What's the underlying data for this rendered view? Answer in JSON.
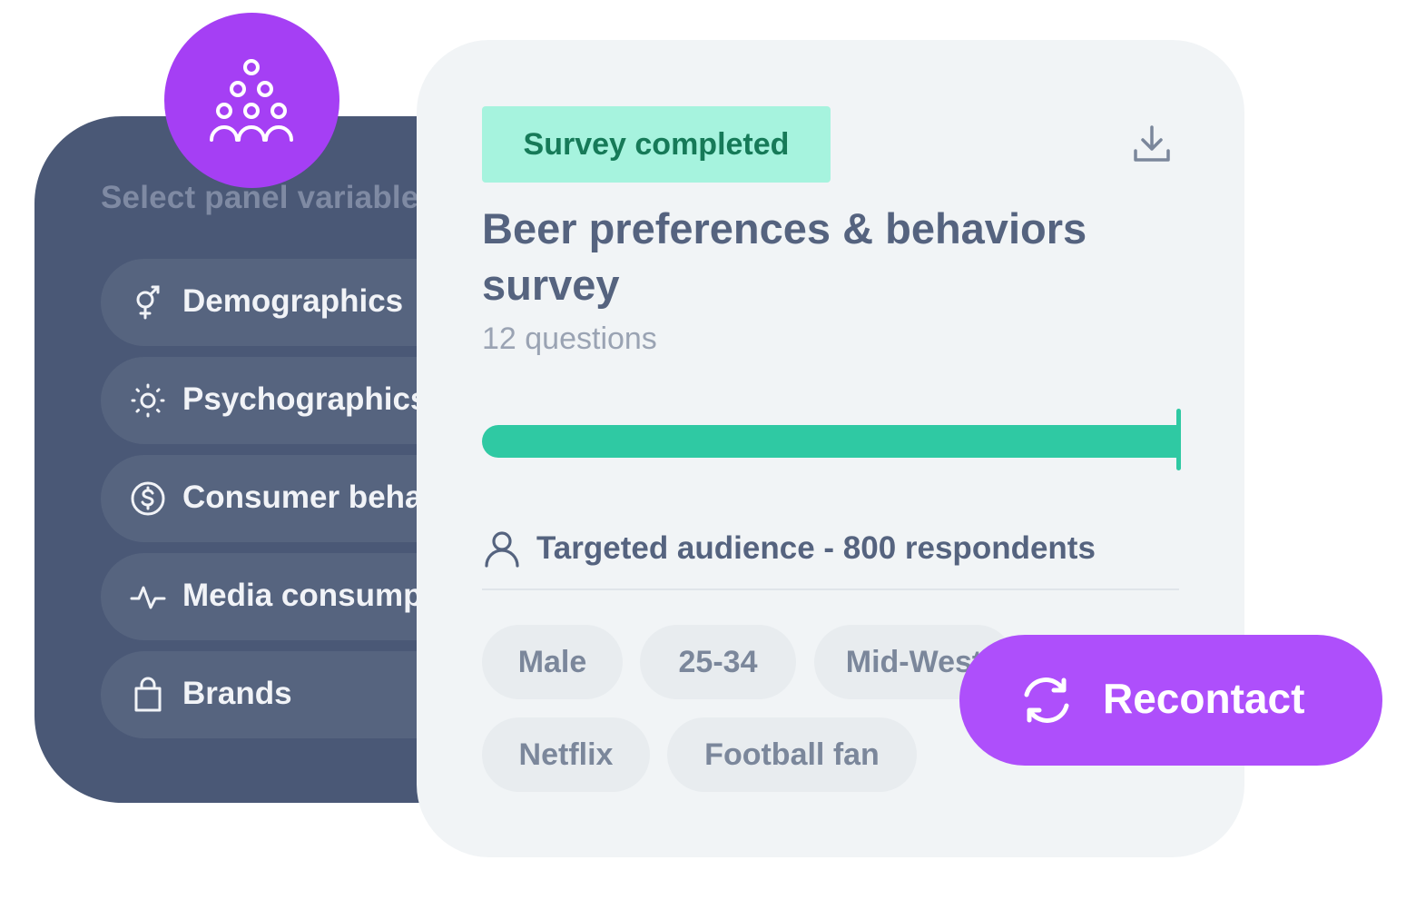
{
  "panel": {
    "title": "Select panel variables",
    "items": [
      {
        "label": "Demographics",
        "icon": "gender-icon"
      },
      {
        "label": "Psychographics",
        "icon": "sun-icon"
      },
      {
        "label": "Consumer behavior",
        "icon": "dollar-icon"
      },
      {
        "label": "Media  consumption",
        "icon": "activity-icon"
      },
      {
        "label": "Brands",
        "icon": "shopping-bag-icon"
      }
    ]
  },
  "badge": {
    "icon": "audience-group-icon",
    "color": "#a53ff4"
  },
  "survey": {
    "status": "Survey completed",
    "title": "Beer preferences & behaviors survey",
    "question_count": "12 questions",
    "progress": 1.0,
    "audience_label": "Targeted audience - 800 respondents",
    "tags": [
      "Male",
      "25-34",
      "Mid-West",
      "Netflix",
      "Football fan"
    ]
  },
  "recontact": {
    "label": "Recontact",
    "icon": "refresh-icon",
    "color": "#ae4ffb"
  },
  "colors": {
    "panel_bg": "#4a5876",
    "card_bg": "#f1f4f6",
    "status_bg": "#a6f3de",
    "status_text": "#167a58",
    "progress": "#2fc9a3"
  }
}
